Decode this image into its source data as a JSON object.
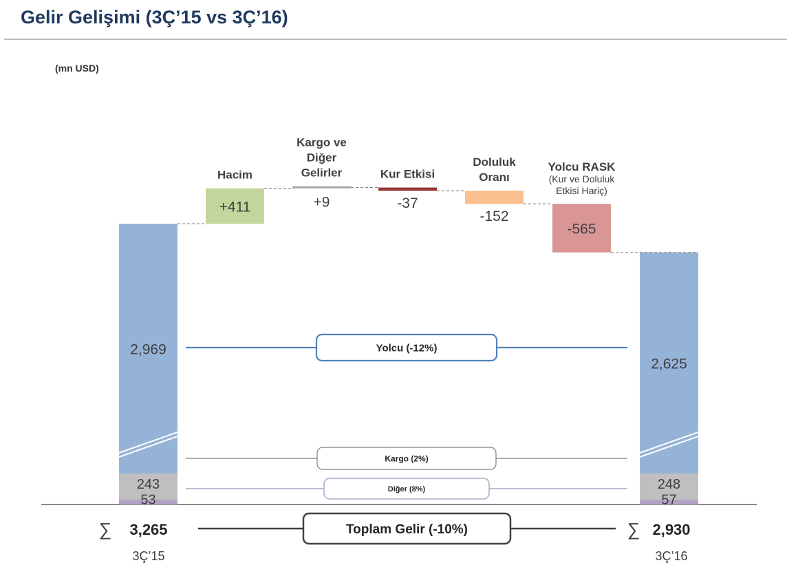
{
  "header": {
    "title": "Gelir Gelişimi (3Ç’15 vs 3Ç’16)",
    "unit": "(mn USD)"
  },
  "chart_data": {
    "type": "waterfall",
    "title": "Gelir Gelişimi (3Ç’15 vs 3Ç’16)",
    "unit": "mn USD",
    "periods": [
      {
        "label": "3Ç’15",
        "total": 3265,
        "total_text": "3,265",
        "sigma": "∑",
        "segments": [
          {
            "name": "Yolcu",
            "value": 2969,
            "text": "2,969",
            "color": "#95b3d7"
          },
          {
            "name": "Kargo",
            "value": 243,
            "text": "243",
            "color": "#bfbfbf"
          },
          {
            "name": "Diğer",
            "value": 53,
            "text": "53",
            "color": "#b3a2c7"
          }
        ]
      },
      {
        "label": "3Ç’16",
        "total": 2930,
        "total_text": "2,930",
        "sigma": "∑",
        "segments": [
          {
            "name": "Yolcu",
            "value": 2625,
            "text": "2,625",
            "color": "#95b3d7"
          },
          {
            "name": "Kargo",
            "value": 248,
            "text": "248",
            "color": "#bfbfbf"
          },
          {
            "name": "Diğer",
            "value": 57,
            "text": "57",
            "color": "#b3a2c7"
          }
        ]
      }
    ],
    "steps": [
      {
        "label": [
          "Hacim"
        ],
        "value": 411,
        "text": "+411",
        "color": "#c3d69b"
      },
      {
        "label": [
          "Kargo ve",
          "Diğer",
          "Gelirler"
        ],
        "value": 9,
        "text": "+9",
        "color": "#a6a6a6"
      },
      {
        "label": [
          "Kur Etkisi"
        ],
        "value": -37,
        "text": "-37",
        "color": "#953735"
      },
      {
        "label": [
          "Doluluk",
          "Oranı"
        ],
        "value": -152,
        "text": "-152",
        "color": "#fac08f"
      },
      {
        "label": [
          "Yolcu RASK"
        ],
        "sublabel": [
          "(Kur ve Doluluk",
          "Etkisi Hariç)"
        ],
        "value": -565,
        "text": "-565",
        "color": "#d99694"
      }
    ],
    "connectors": [
      {
        "text": "Yolcu (-12%)",
        "color": "#4f81bd"
      },
      {
        "text": "Kargo (2%)",
        "color": "#7f7f7f"
      },
      {
        "text": "Diğer (8%)",
        "color": "#b3a2c7"
      },
      {
        "text": "Toplam Gelir (-10%)",
        "color": "#404040"
      }
    ]
  }
}
